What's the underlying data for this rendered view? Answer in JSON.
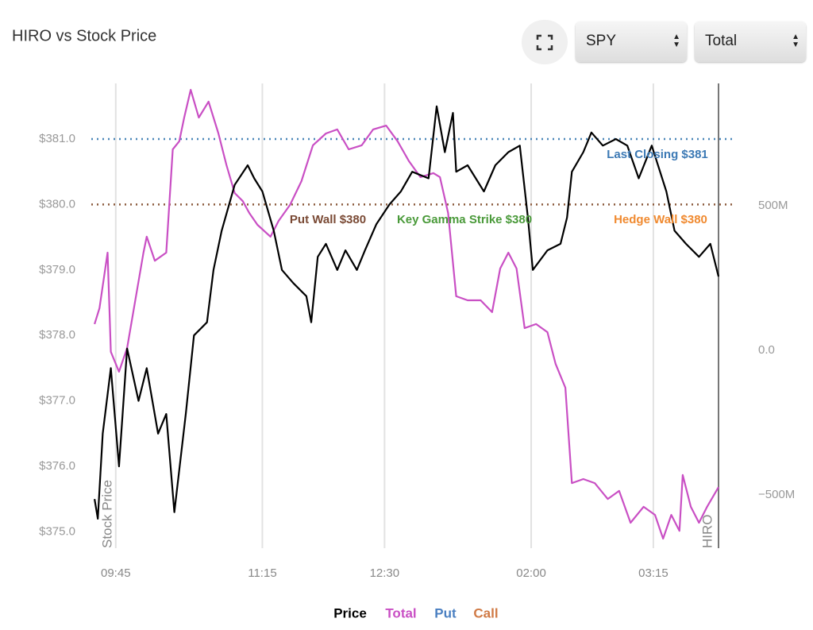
{
  "controls": {
    "symbol": "SPY",
    "view": "Total"
  },
  "chart_data": {
    "type": "line",
    "title": "HIRO vs Stock Price",
    "y_label": "Stock Price",
    "y2_label": "HIRO",
    "xlim": [
      570,
      955
    ],
    "xticks": [
      {
        "value": 585,
        "label": "09:45"
      },
      {
        "value": 675,
        "label": "11:15"
      },
      {
        "value": 750,
        "label": "12:30"
      },
      {
        "value": 840,
        "label": "02:00"
      },
      {
        "value": 915,
        "label": "03:15"
      }
    ],
    "ylim": [
      374.75,
      381.85
    ],
    "yticks": [
      {
        "value": 375,
        "label": "$375.0"
      },
      {
        "value": 376,
        "label": "$376.0"
      },
      {
        "value": 377,
        "label": "$377.0"
      },
      {
        "value": 378,
        "label": "$378.0"
      },
      {
        "value": 379,
        "label": "$379.0"
      },
      {
        "value": 380,
        "label": "$380.0"
      },
      {
        "value": 381,
        "label": "$381.0"
      }
    ],
    "y2lim": [
      -684,
      923
    ],
    "y2ticks": [
      {
        "value": -500,
        "label": "−500M"
      },
      {
        "value": 0,
        "label": "0.0"
      },
      {
        "value": 500,
        "label": "500M"
      }
    ],
    "grid": true,
    "legend": "bottom",
    "hlines": [
      {
        "value": 381,
        "color": "#4a86b8"
      },
      {
        "value": 380,
        "color": "#8b5a3c"
      }
    ],
    "annotations": [
      {
        "text": "Last Closing $381",
        "color": "#3d7ab5"
      },
      {
        "text": "Put Wall $380",
        "color": "#7a4a35"
      },
      {
        "text": "Key Gamma Strike $380",
        "color": "#4a9a3a"
      },
      {
        "text": "Hedge Wall $380",
        "color": "#f08a30"
      }
    ],
    "series": [
      {
        "name": "Price",
        "color": "#000000",
        "x": [
          572,
          574,
          577,
          582,
          587,
          592,
          599,
          604,
          611,
          616,
          621,
          628,
          633,
          641,
          645,
          650,
          658,
          666,
          670,
          675,
          682,
          687,
          694,
          702,
          705,
          709,
          714,
          721,
          726,
          733,
          738,
          745,
          753,
          760,
          767,
          777,
          782,
          787,
          792,
          794,
          801,
          811,
          818,
          826,
          833,
          838,
          841,
          850,
          858,
          862,
          865,
          872,
          877,
          884,
          892,
          899,
          906,
          914,
          923,
          928,
          935,
          943,
          950,
          955
        ],
        "values": [
          375.5,
          375.2,
          376.5,
          377.5,
          376.0,
          377.8,
          377.0,
          377.5,
          376.5,
          376.8,
          375.3,
          376.8,
          378.0,
          378.2,
          379.0,
          379.6,
          380.3,
          380.6,
          380.4,
          380.2,
          379.6,
          379.0,
          378.8,
          378.6,
          378.2,
          379.2,
          379.4,
          379.0,
          379.3,
          379.0,
          379.3,
          379.7,
          380.0,
          380.2,
          380.5,
          380.4,
          381.5,
          380.8,
          381.4,
          380.5,
          380.6,
          380.2,
          380.6,
          380.8,
          380.9,
          379.8,
          379.0,
          379.3,
          379.4,
          379.8,
          380.5,
          380.8,
          381.1,
          380.9,
          381.0,
          380.9,
          380.4,
          380.9,
          380.2,
          379.6,
          379.4,
          379.2,
          379.4,
          378.9
        ]
      },
      {
        "name": "Total",
        "color": "#c94fc4",
        "axis": "y2",
        "x": [
          572,
          575,
          580,
          582,
          587,
          592,
          597,
          602,
          604,
          609,
          616,
          620,
          624,
          627,
          631,
          636,
          642,
          648,
          653,
          658,
          663,
          667,
          672,
          680,
          685,
          692,
          699,
          706,
          714,
          721,
          728,
          736,
          743,
          751,
          758,
          765,
          772,
          780,
          784,
          789,
          794,
          801,
          809,
          816,
          821,
          826,
          831,
          836,
          843,
          850,
          855,
          861,
          865,
          872,
          879,
          887,
          894,
          901,
          909,
          916,
          921,
          926,
          931,
          933,
          938,
          943,
          948,
          955
        ],
        "values": [
          91,
          146,
          338,
          -5,
          -74,
          8,
          173,
          338,
          393,
          310,
          338,
          695,
          723,
          805,
          901,
          805,
          860,
          750,
          640,
          544,
          516,
          475,
          434,
          393,
          448,
          503,
          585,
          709,
          750,
          764,
          695,
          709,
          764,
          777,
          723,
          654,
          599,
          613,
          599,
          475,
          187,
          173,
          173,
          132,
          283,
          338,
          283,
          77,
          91,
          63,
          -47,
          -129,
          -459,
          -445,
          -459,
          -514,
          -486,
          -596,
          -541,
          -569,
          -651,
          -569,
          -624,
          -431,
          -541,
          -596,
          -541,
          -473
        ]
      },
      {
        "name": "Put",
        "color": "#4a7fc1"
      },
      {
        "name": "Call",
        "color": "#d07a45"
      }
    ]
  }
}
